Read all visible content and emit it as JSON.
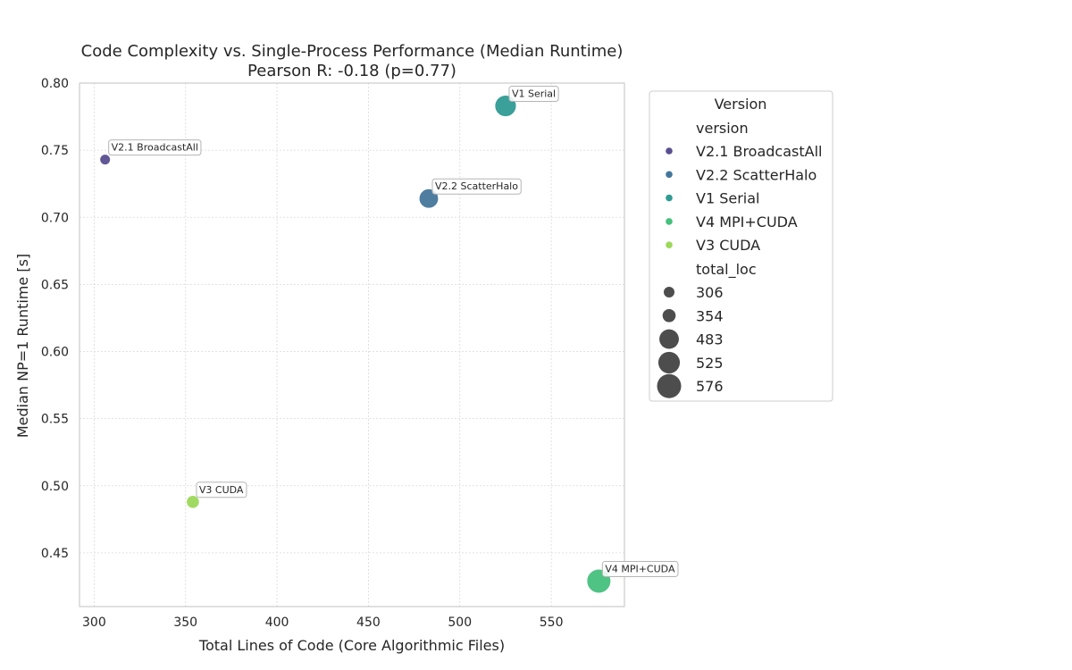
{
  "chart_data": {
    "type": "scatter",
    "title": "Code Complexity vs. Single-Process Performance (Median Runtime)",
    "subtitle": "Pearson R: -0.18 (p=0.77)",
    "xlabel": "Total Lines of Code (Core Algorithmic Files)",
    "ylabel": "Median NP=1 Runtime [s]",
    "xlim": [
      292,
      590
    ],
    "ylim": [
      0.41,
      0.8
    ],
    "xticks": [
      "300",
      "350",
      "400",
      "450",
      "500",
      "550"
    ],
    "yticks": [
      "0.45",
      "0.50",
      "0.55",
      "0.60",
      "0.65",
      "0.70",
      "0.75",
      "0.80"
    ],
    "grid": true,
    "points": [
      {
        "label": "V2.1 BroadcastAll",
        "x": 306,
        "y": 0.743,
        "total_loc": 306,
        "color": "#574f8f"
      },
      {
        "label": "V2.2 ScatterHalo",
        "x": 483,
        "y": 0.714,
        "total_loc": 483,
        "color": "#44769b"
      },
      {
        "label": "V1 Serial",
        "x": 525,
        "y": 0.783,
        "total_loc": 525,
        "color": "#2f9b93"
      },
      {
        "label": "V4 MPI+CUDA",
        "x": 576,
        "y": 0.429,
        "total_loc": 576,
        "color": "#46c07d"
      },
      {
        "label": "V3 CUDA",
        "x": 354,
        "y": 0.488,
        "total_loc": 354,
        "color": "#9cd85a"
      }
    ],
    "legend": {
      "title": "Version",
      "hue_header": "version",
      "hue_entries": [
        {
          "label": "V2.1 BroadcastAll",
          "color": "#574f8f"
        },
        {
          "label": "V2.2 ScatterHalo",
          "color": "#44769b"
        },
        {
          "label": "V1 Serial",
          "color": "#2f9b93"
        },
        {
          "label": "V4 MPI+CUDA",
          "color": "#46c07d"
        },
        {
          "label": "V3 CUDA",
          "color": "#9cd85a"
        }
      ],
      "size_header": "total_loc",
      "size_entries": [
        "306",
        "354",
        "483",
        "525",
        "576"
      ],
      "placement": "outside-right"
    }
  }
}
